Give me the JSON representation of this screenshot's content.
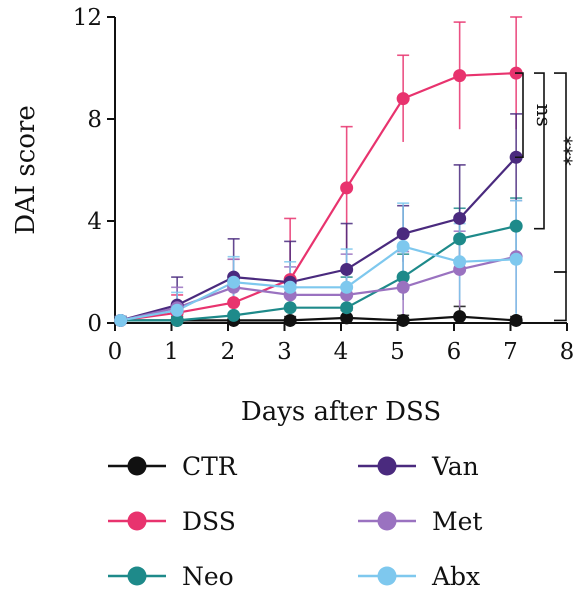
{
  "chart_data": {
    "type": "line",
    "title": "",
    "xlabel": "Days after DSS",
    "ylabel": "DAI score",
    "xlim": [
      0,
      8
    ],
    "ylim": [
      0,
      12
    ],
    "x_ticks": [
      "0",
      "1",
      "2",
      "3",
      "4",
      "5",
      "6",
      "7",
      "8"
    ],
    "y_ticks": [
      "0",
      "4",
      "8",
      "12"
    ],
    "grid": false,
    "legend_position": "bottom",
    "series": [
      {
        "name": "CTR",
        "color": "#111111",
        "points": [
          {
            "x": 0.1,
            "y": 0.1,
            "err": 0.15
          },
          {
            "x": 1.1,
            "y": 0.1,
            "err": 0.15
          },
          {
            "x": 2.1,
            "y": 0.1,
            "err": 0.15
          },
          {
            "x": 3.1,
            "y": 0.1,
            "err": 0.15
          },
          {
            "x": 4.1,
            "y": 0.2,
            "err": 0.3
          },
          {
            "x": 5.1,
            "y": 0.1,
            "err": 0.2
          },
          {
            "x": 6.1,
            "y": 0.25,
            "err": 0.4
          },
          {
            "x": 7.1,
            "y": 0.1,
            "err": 0.15
          }
        ]
      },
      {
        "name": "DSS",
        "color": "#e8336e",
        "points": [
          {
            "x": 0.1,
            "y": 0.1,
            "err": 0.15
          },
          {
            "x": 1.1,
            "y": 0.4,
            "err": 0.7
          },
          {
            "x": 2.1,
            "y": 0.8,
            "err": 1.7
          },
          {
            "x": 3.1,
            "y": 1.7,
            "err": 2.4
          },
          {
            "x": 4.1,
            "y": 5.3,
            "err": 2.4
          },
          {
            "x": 5.1,
            "y": 8.8,
            "err": 1.7
          },
          {
            "x": 6.1,
            "y": 9.7,
            "err": 2.1
          },
          {
            "x": 7.1,
            "y": 9.8,
            "err": 2.2
          }
        ]
      },
      {
        "name": "Neo",
        "color": "#1e8a8a",
        "points": [
          {
            "x": 0.1,
            "y": 0.1,
            "err": 0.15
          },
          {
            "x": 1.1,
            "y": 0.1,
            "err": 0.15
          },
          {
            "x": 2.1,
            "y": 0.3,
            "err": 0.5
          },
          {
            "x": 3.1,
            "y": 0.6,
            "err": 0.6
          },
          {
            "x": 4.1,
            "y": 0.6,
            "err": 1.2
          },
          {
            "x": 5.1,
            "y": 1.8,
            "err": 0.9
          },
          {
            "x": 6.1,
            "y": 3.3,
            "err": 1.2
          },
          {
            "x": 7.1,
            "y": 3.8,
            "err": 1.1
          }
        ]
      },
      {
        "name": "Van",
        "color": "#4a2a7e",
        "points": [
          {
            "x": 0.1,
            "y": 0.1,
            "err": 0.15
          },
          {
            "x": 1.1,
            "y": 0.7,
            "err": 1.1
          },
          {
            "x": 2.1,
            "y": 1.8,
            "err": 1.5
          },
          {
            "x": 3.1,
            "y": 1.6,
            "err": 1.6
          },
          {
            "x": 4.1,
            "y": 2.1,
            "err": 1.8
          },
          {
            "x": 5.1,
            "y": 3.5,
            "err": 1.1
          },
          {
            "x": 6.1,
            "y": 4.1,
            "err": 2.1
          },
          {
            "x": 7.1,
            "y": 6.5,
            "err": 1.7
          }
        ]
      },
      {
        "name": "Met",
        "color": "#9a72c0",
        "points": [
          {
            "x": 0.1,
            "y": 0.1,
            "err": 0.15
          },
          {
            "x": 1.1,
            "y": 0.6,
            "err": 0.8
          },
          {
            "x": 2.1,
            "y": 1.4,
            "err": 1.1
          },
          {
            "x": 3.1,
            "y": 1.1,
            "err": 1.1
          },
          {
            "x": 4.1,
            "y": 1.1,
            "err": 1.6
          },
          {
            "x": 5.1,
            "y": 1.4,
            "err": 1.4
          },
          {
            "x": 6.1,
            "y": 2.1,
            "err": 1.5
          },
          {
            "x": 7.1,
            "y": 2.6,
            "err": 2.2
          }
        ]
      },
      {
        "name": "Abx",
        "color": "#7ec8ee",
        "points": [
          {
            "x": 0.1,
            "y": 0.1,
            "err": 0.15
          },
          {
            "x": 1.1,
            "y": 0.5,
            "err": 0.7
          },
          {
            "x": 2.1,
            "y": 1.6,
            "err": 1.0
          },
          {
            "x": 3.1,
            "y": 1.4,
            "err": 1.0
          },
          {
            "x": 4.1,
            "y": 1.4,
            "err": 1.5
          },
          {
            "x": 5.1,
            "y": 3.0,
            "err": 1.7
          },
          {
            "x": 6.1,
            "y": 2.4,
            "err": 1.5
          },
          {
            "x": 7.1,
            "y": 2.5,
            "err": 2.3
          }
        ]
      }
    ],
    "significance": [
      {
        "label": "ns",
        "from_y": 9.8,
        "to_y": 6.5
      },
      {
        "label": "***",
        "from_y": 9.8,
        "to_y": 3.7
      },
      {
        "label": "***",
        "from_y": 9.8,
        "to_y": 2.0
      },
      {
        "label": "*",
        "from_y": 2.0,
        "to_y": 0.1
      }
    ]
  }
}
